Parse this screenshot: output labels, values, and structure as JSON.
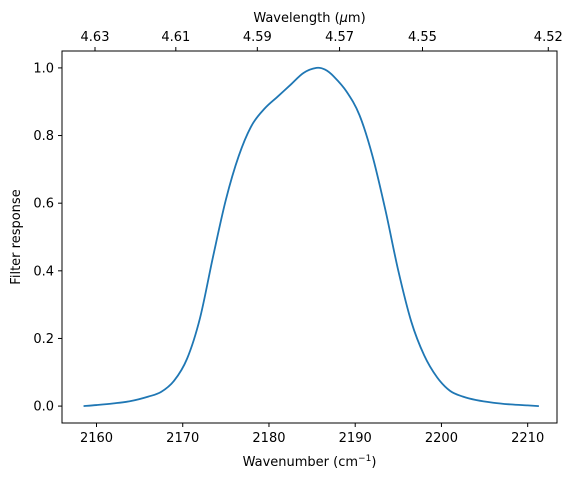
{
  "chart_data": {
    "type": "line",
    "xlabel": "Wavenumber (cm",
    "xlabel_sup": "−1",
    "xlabel_suffix": ")",
    "ylabel": "Filter response",
    "top_xlabel": "Wavelength (",
    "top_xlabel_mu": "μ",
    "top_xlabel_suffix": "m)",
    "xlim": [
      2156,
      2213.4
    ],
    "ylim": [
      -0.05,
      1.05
    ],
    "x_ticks": [
      2160,
      2170,
      2180,
      2190,
      2200,
      2210
    ],
    "x_tick_labels": [
      "2160",
      "2170",
      "2180",
      "2190",
      "2200",
      "2210"
    ],
    "y_ticks": [
      0.0,
      0.2,
      0.4,
      0.6,
      0.8,
      1.0
    ],
    "y_tick_labels": [
      "0.0",
      "0.2",
      "0.4",
      "0.6",
      "0.8",
      "1.0"
    ],
    "top_ticks_wavelength": [
      4.63,
      4.61,
      4.59,
      4.57,
      4.55,
      4.52
    ],
    "top_tick_labels": [
      "4.63",
      "4.61",
      "4.59",
      "4.57",
      "4.55",
      "4.52"
    ],
    "grid": false,
    "line_color": "#1f77b4",
    "series": [
      {
        "x": [
          2158.5,
          2160,
          2162,
          2164,
          2166,
          2167.5,
          2169,
          2170.5,
          2172,
          2173.5,
          2175,
          2176.5,
          2178,
          2179.5,
          2181,
          2182.5,
          2184,
          2185.5,
          2186.5,
          2187.5,
          2189,
          2190.5,
          2192,
          2193.5,
          2195,
          2196.5,
          2198,
          2199.5,
          2201,
          2202.5,
          2204,
          2206,
          2208,
          2210,
          2211.3
        ],
        "y": [
          0.0,
          0.003,
          0.008,
          0.015,
          0.028,
          0.042,
          0.075,
          0.14,
          0.26,
          0.44,
          0.61,
          0.74,
          0.83,
          0.88,
          0.915,
          0.95,
          0.985,
          1.0,
          0.995,
          0.975,
          0.93,
          0.86,
          0.74,
          0.58,
          0.4,
          0.25,
          0.15,
          0.085,
          0.045,
          0.028,
          0.018,
          0.01,
          0.005,
          0.002,
          0.0
        ]
      }
    ]
  }
}
